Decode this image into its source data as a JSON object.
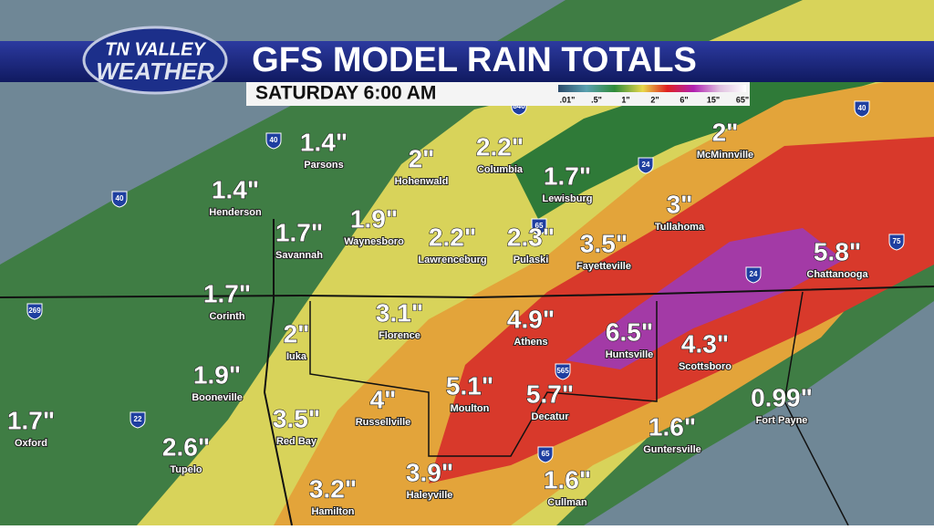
{
  "header": {
    "logo": [
      "TN VALLEY",
      "WEATHER"
    ],
    "title": "GFS MODEL RAIN TOTALS",
    "subtitle": "SATURDAY 6:00 AM"
  },
  "legend": {
    "labels": [
      ".01\"",
      ".5\"",
      "1\"",
      "2\"",
      "6\"",
      "15\"",
      "65\""
    ]
  },
  "cities": [
    {
      "name": "Parsons",
      "total": "1.4\""
    },
    {
      "name": "Hohenwald",
      "total": "2\""
    },
    {
      "name": "Columbia",
      "total": "2.2\""
    },
    {
      "name": "Lewisburg",
      "total": "1.7\""
    },
    {
      "name": "McMinnville",
      "total": "2\""
    },
    {
      "name": "Henderson",
      "total": "1.4\""
    },
    {
      "name": "Tullahoma",
      "total": "3\""
    },
    {
      "name": "Savannah",
      "total": "1.7\""
    },
    {
      "name": "Waynesboro",
      "total": "1.9\""
    },
    {
      "name": "Lawrenceburg",
      "total": "2.2\""
    },
    {
      "name": "Pulaski",
      "total": "2.3\""
    },
    {
      "name": "Fayetteville",
      "total": "3.5\""
    },
    {
      "name": "Chattanooga",
      "total": "5.8\""
    },
    {
      "name": "Corinth",
      "total": "1.7\""
    },
    {
      "name": "Florence",
      "total": "3.1\""
    },
    {
      "name": "Athens",
      "total": "4.9\""
    },
    {
      "name": "Huntsville",
      "total": "6.5\""
    },
    {
      "name": "Scottsboro",
      "total": "4.3\""
    },
    {
      "name": "Iuka",
      "total": "2\""
    },
    {
      "name": "Booneville",
      "total": "1.9\""
    },
    {
      "name": "Moulton",
      "total": "5.1\""
    },
    {
      "name": "Decatur",
      "total": "5.7\""
    },
    {
      "name": "Russellville",
      "total": "4\""
    },
    {
      "name": "Fort Payne",
      "total": "0.99\""
    },
    {
      "name": "Oxford",
      "total": "1.7\""
    },
    {
      "name": "Red Bay",
      "total": "3.5\""
    },
    {
      "name": "Guntersville",
      "total": "1.6\""
    },
    {
      "name": "Tupelo",
      "total": "2.6\""
    },
    {
      "name": "Haleyville",
      "total": "3.9\""
    },
    {
      "name": "Hamilton",
      "total": "3.2\""
    },
    {
      "name": "Cullman",
      "total": "1.6\""
    }
  ],
  "highways": [
    "40",
    "40",
    "840",
    "24",
    "65",
    "40",
    "24",
    "75",
    "269",
    "565",
    "22",
    "65"
  ]
}
